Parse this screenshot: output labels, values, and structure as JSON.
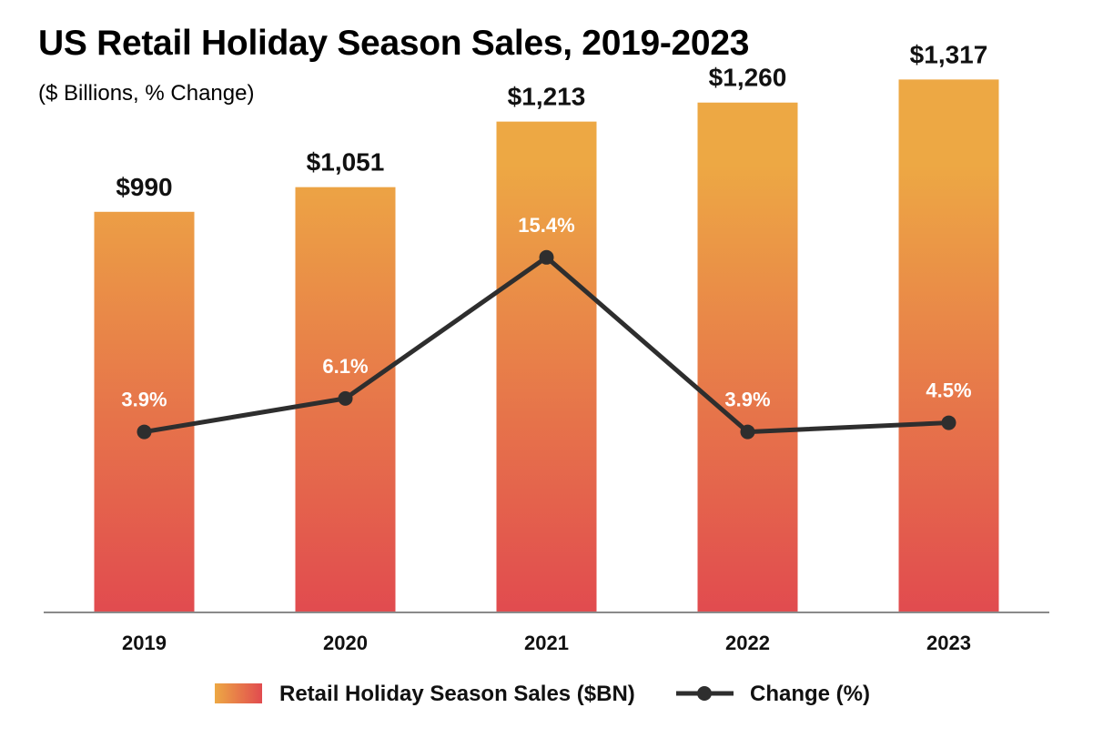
{
  "header": {
    "title": "US Retail Holiday Season Sales, 2019-2023",
    "subtitle": "($ Billions, % Change)"
  },
  "colors": {
    "bar_top": "#eda844",
    "bar_bottom": "#e14b4f",
    "line": "#2e2e2e",
    "axis": "#8a8a8a",
    "text": "#111111"
  },
  "chart_data": {
    "type": "bar",
    "categories": [
      "2019",
      "2020",
      "2021",
      "2022",
      "2023"
    ],
    "series": [
      {
        "name": "Retail Holiday Season Sales ($BN)",
        "type": "bar",
        "values": [
          990,
          1051,
          1213,
          1260,
          1317
        ],
        "labels": [
          "$990",
          "$1,051",
          "$1,213",
          "$1,260",
          "$1,317"
        ]
      },
      {
        "name": "Change (%)",
        "type": "line",
        "values": [
          3.9,
          6.1,
          15.4,
          3.9,
          4.5
        ],
        "labels": [
          "3.9%",
          "6.1%",
          "15.4%",
          "3.9%",
          "4.5%"
        ]
      }
    ],
    "bar_axis_range": [
      0,
      1500
    ],
    "line_axis_range": [
      -8,
      32
    ],
    "legend_position": "bottom-center",
    "grid": false
  }
}
